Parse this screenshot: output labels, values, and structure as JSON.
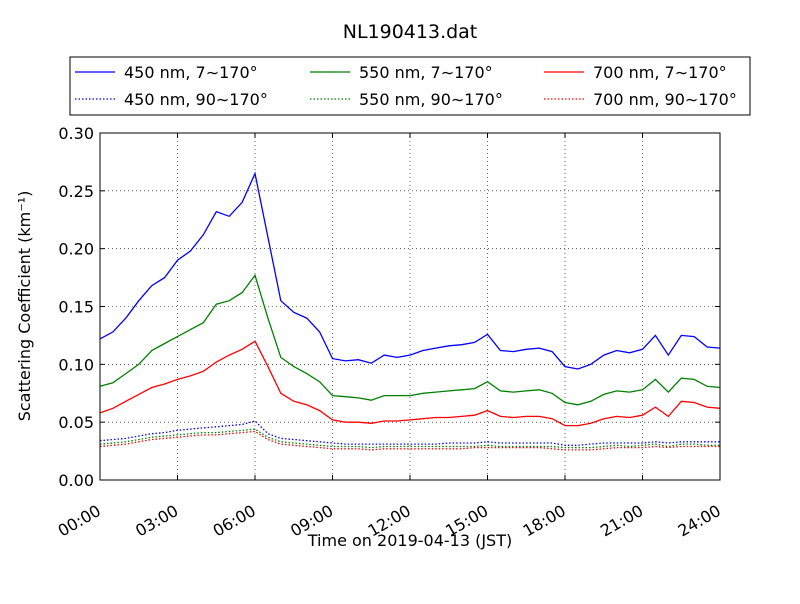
{
  "chart_data": {
    "type": "line",
    "title": "NL190413.dat",
    "xlabel": "Time on 2019-04-13 (JST)",
    "ylabel": "Scattering Coefficient (km⁻¹)",
    "x_unit": "hours",
    "xlim": [
      0,
      24
    ],
    "ylim": [
      0.0,
      0.3
    ],
    "x_ticks": [
      0,
      3,
      6,
      9,
      12,
      15,
      18,
      21,
      24
    ],
    "x_tick_labels": [
      "00:00",
      "03:00",
      "06:00",
      "09:00",
      "12:00",
      "15:00",
      "18:00",
      "21:00",
      "24:00"
    ],
    "y_ticks": [
      0.0,
      0.05,
      0.1,
      0.15,
      0.2,
      0.25,
      0.3
    ],
    "y_tick_labels": [
      "0.00",
      "0.05",
      "0.10",
      "0.15",
      "0.20",
      "0.25",
      "0.30"
    ],
    "grid": true,
    "legend_position": "top",
    "x": [
      0,
      0.5,
      1,
      1.5,
      2,
      2.5,
      3,
      3.5,
      4,
      4.5,
      5,
      5.5,
      6,
      6.5,
      7,
      7.5,
      8,
      8.5,
      9,
      9.5,
      10,
      10.5,
      11,
      11.5,
      12,
      12.5,
      13,
      13.5,
      14,
      14.5,
      15,
      15.5,
      16,
      16.5,
      17,
      17.5,
      18,
      18.5,
      19,
      19.5,
      20,
      20.5,
      21,
      21.5,
      22,
      22.5,
      23,
      23.5,
      24
    ],
    "series": [
      {
        "name": "450 nm, 7∼170°",
        "color": "#0000ff",
        "style": "solid",
        "values": [
          0.122,
          0.128,
          0.14,
          0.155,
          0.168,
          0.175,
          0.19,
          0.198,
          0.212,
          0.232,
          0.228,
          0.24,
          0.265,
          0.21,
          0.155,
          0.145,
          0.14,
          0.128,
          0.105,
          0.103,
          0.104,
          0.101,
          0.108,
          0.106,
          0.108,
          0.112,
          0.114,
          0.116,
          0.117,
          0.119,
          0.126,
          0.112,
          0.111,
          0.113,
          0.114,
          0.111,
          0.098,
          0.096,
          0.1,
          0.108,
          0.112,
          0.11,
          0.113,
          0.125,
          0.108,
          0.125,
          0.124,
          0.115,
          0.114
        ]
      },
      {
        "name": "450 nm, 90∼170°",
        "color": "#0000ff",
        "style": "dotted",
        "values": [
          0.034,
          0.035,
          0.036,
          0.038,
          0.04,
          0.041,
          0.043,
          0.044,
          0.045,
          0.046,
          0.047,
          0.048,
          0.051,
          0.04,
          0.036,
          0.035,
          0.034,
          0.033,
          0.032,
          0.031,
          0.031,
          0.031,
          0.031,
          0.031,
          0.031,
          0.031,
          0.031,
          0.032,
          0.032,
          0.032,
          0.033,
          0.032,
          0.032,
          0.032,
          0.032,
          0.032,
          0.03,
          0.03,
          0.031,
          0.032,
          0.032,
          0.032,
          0.032,
          0.033,
          0.032,
          0.033,
          0.033,
          0.033,
          0.033
        ]
      },
      {
        "name": "550 nm, 7∼170°",
        "color": "#008000",
        "style": "solid",
        "values": [
          0.081,
          0.084,
          0.092,
          0.1,
          0.112,
          0.118,
          0.124,
          0.13,
          0.136,
          0.152,
          0.155,
          0.162,
          0.177,
          0.14,
          0.106,
          0.098,
          0.092,
          0.085,
          0.073,
          0.072,
          0.071,
          0.069,
          0.073,
          0.073,
          0.073,
          0.075,
          0.076,
          0.077,
          0.078,
          0.079,
          0.085,
          0.077,
          0.076,
          0.077,
          0.078,
          0.075,
          0.067,
          0.065,
          0.068,
          0.074,
          0.077,
          0.076,
          0.078,
          0.087,
          0.076,
          0.088,
          0.087,
          0.081,
          0.08
        ]
      },
      {
        "name": "550 nm, 90∼170°",
        "color": "#008000",
        "style": "dotted",
        "values": [
          0.031,
          0.032,
          0.033,
          0.035,
          0.037,
          0.038,
          0.039,
          0.04,
          0.041,
          0.041,
          0.042,
          0.043,
          0.044,
          0.037,
          0.033,
          0.032,
          0.031,
          0.03,
          0.029,
          0.029,
          0.029,
          0.028,
          0.029,
          0.029,
          0.029,
          0.029,
          0.029,
          0.029,
          0.029,
          0.029,
          0.03,
          0.029,
          0.029,
          0.029,
          0.029,
          0.029,
          0.028,
          0.028,
          0.028,
          0.029,
          0.03,
          0.029,
          0.03,
          0.031,
          0.029,
          0.031,
          0.031,
          0.03,
          0.03
        ]
      },
      {
        "name": "700 nm, 7∼170°",
        "color": "#ff0000",
        "style": "solid",
        "values": [
          0.058,
          0.062,
          0.068,
          0.074,
          0.08,
          0.083,
          0.087,
          0.09,
          0.094,
          0.102,
          0.108,
          0.113,
          0.12,
          0.098,
          0.075,
          0.068,
          0.065,
          0.06,
          0.052,
          0.05,
          0.05,
          0.049,
          0.051,
          0.051,
          0.052,
          0.053,
          0.054,
          0.054,
          0.055,
          0.056,
          0.06,
          0.055,
          0.054,
          0.055,
          0.055,
          0.053,
          0.047,
          0.047,
          0.049,
          0.053,
          0.055,
          0.054,
          0.056,
          0.063,
          0.055,
          0.068,
          0.067,
          0.063,
          0.062
        ]
      },
      {
        "name": "700 nm, 90∼170°",
        "color": "#ff0000",
        "style": "dotted",
        "values": [
          0.029,
          0.03,
          0.031,
          0.033,
          0.035,
          0.036,
          0.037,
          0.038,
          0.039,
          0.039,
          0.04,
          0.041,
          0.042,
          0.035,
          0.031,
          0.03,
          0.029,
          0.028,
          0.027,
          0.027,
          0.027,
          0.026,
          0.027,
          0.027,
          0.027,
          0.027,
          0.027,
          0.027,
          0.027,
          0.028,
          0.028,
          0.028,
          0.028,
          0.028,
          0.028,
          0.027,
          0.026,
          0.026,
          0.026,
          0.027,
          0.028,
          0.028,
          0.028,
          0.029,
          0.028,
          0.029,
          0.029,
          0.029,
          0.029
        ]
      }
    ]
  }
}
